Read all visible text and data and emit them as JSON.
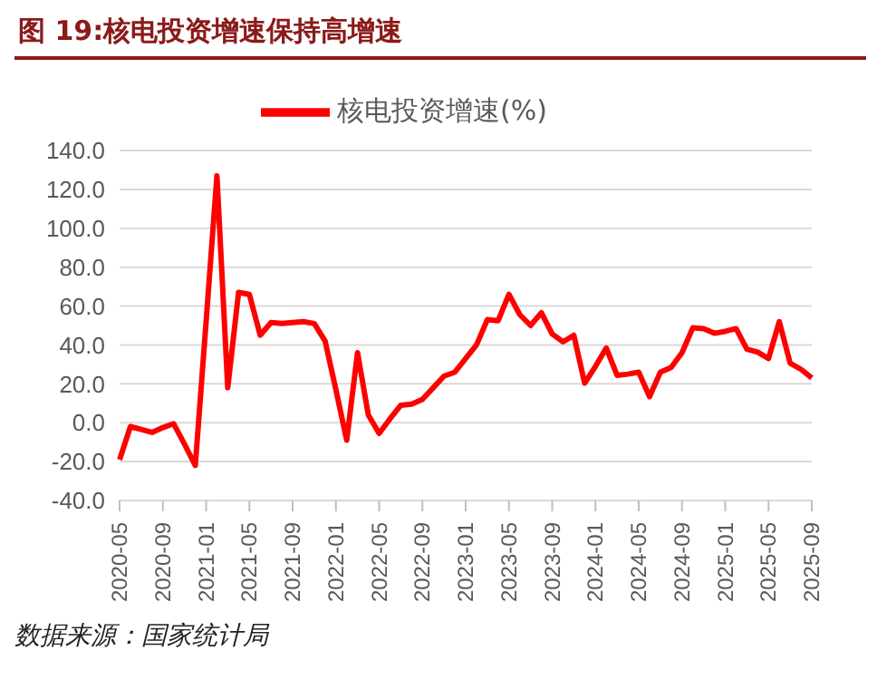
{
  "chart_data": {
    "type": "line",
    "title": "图 19:核电投资增速保持高增速",
    "annotations": [
      "数据来源：国家统计局"
    ],
    "categories": [
      "2020-05",
      null,
      null,
      null,
      "2020-09",
      null,
      null,
      null,
      "2021-01",
      null,
      null,
      null,
      "2021-05",
      null,
      null,
      null,
      "2021-09",
      null,
      null,
      null,
      "2022-01",
      null,
      null,
      null,
      "2022-05",
      null,
      null,
      null,
      "2022-09",
      null,
      null,
      null,
      "2023-01",
      null,
      null,
      null,
      "2023-05",
      null,
      null,
      null,
      "2023-09",
      null,
      null,
      null,
      "2024-01",
      null,
      null,
      null,
      "2024-05",
      null,
      null,
      null,
      "2024-09",
      null,
      null,
      null,
      "2025-01",
      null,
      null,
      null,
      "2025-05",
      null,
      null,
      null,
      "2025-09"
    ],
    "series": [
      {
        "name": "核电投资增速(%)",
        "color": "#ff0000",
        "values": [
          -19,
          -2,
          -3.5,
          -5,
          -2.5,
          -0.5,
          -11,
          -22,
          52,
          127,
          18,
          67,
          66,
          45,
          51.5,
          51,
          51.5,
          52,
          51,
          42,
          17,
          -9,
          36,
          4,
          -5.5,
          2,
          9,
          9.5,
          12,
          18,
          24,
          26,
          33,
          40,
          53,
          52.5,
          66,
          55.6,
          50,
          56.6,
          45.6,
          41.6,
          45,
          20.3,
          29,
          38.4,
          24.4,
          25,
          26,
          13.4,
          26,
          28.4,
          36,
          48.8,
          48.4,
          46,
          47,
          48.4,
          37.8,
          36.3,
          33,
          52,
          30.6,
          27.5,
          23
        ]
      }
    ],
    "ylim": [
      -40,
      140
    ],
    "yticks": [
      {
        "value": -40,
        "label": "-40.0"
      },
      {
        "value": -20,
        "label": "-20.0"
      },
      {
        "value": 0,
        "label": "0.0"
      },
      {
        "value": 20,
        "label": "20.0"
      },
      {
        "value": 40,
        "label": "40.0"
      },
      {
        "value": 60,
        "label": "60.0"
      },
      {
        "value": 80,
        "label": "80.0"
      },
      {
        "value": 100,
        "label": "100.0"
      },
      {
        "value": 120,
        "label": "120.0"
      },
      {
        "value": 140,
        "label": "140.0"
      }
    ],
    "grid": "y",
    "legend": "top",
    "marker": "none",
    "line_style": "solid"
  }
}
